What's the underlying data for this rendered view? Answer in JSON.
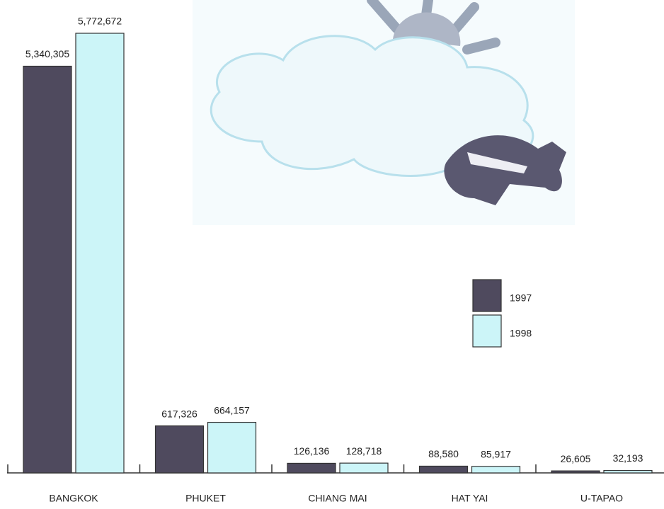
{
  "chart_data": {
    "type": "bar",
    "categories": [
      "BANGKOK",
      "PHUKET",
      "CHIANG MAI",
      "HAT YAI",
      "U-TAPAO"
    ],
    "series": [
      {
        "name": "1997",
        "color": "#4f4a5e",
        "values": [
          5340305,
          617326,
          126136,
          88580,
          26605
        ],
        "value_labels": [
          "5,340,305",
          "617,326",
          "126,136",
          "88,580",
          "26,605"
        ]
      },
      {
        "name": "1998",
        "color": "#ccf5f8",
        "values": [
          5772672,
          664157,
          128718,
          85917,
          32193
        ],
        "value_labels": [
          "5,772,672",
          "664,157",
          "128,718",
          "85,917",
          "32,193"
        ]
      }
    ],
    "legend": "right"
  }
}
